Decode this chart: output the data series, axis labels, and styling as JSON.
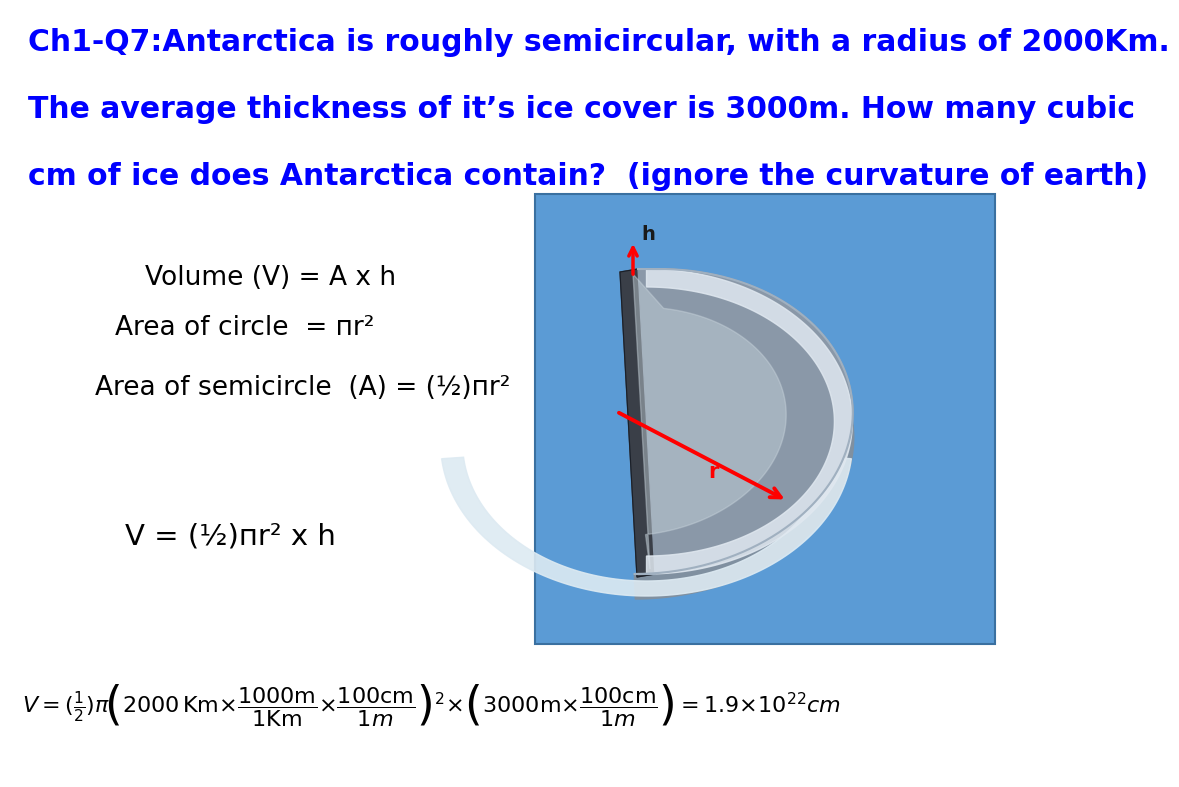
{
  "bg_color": "#FFFFFF",
  "title_color": "#0000FF",
  "title_fontsize": 21.5,
  "title_lines": [
    "Ch1-Q7:Antarctica is roughly semicircular, with a radius of 2000Km.",
    "The average thickness of it’s ice cover is 3000m. How many cubic",
    "cm of ice does Antarctica contain?  (ignore the curvature of earth)"
  ],
  "text_color": "#000000",
  "text_fontsize": 19,
  "box_color": "#5B9BD5",
  "box_edge_color": "#3A70A0",
  "line1": "Volume (V) = A x h",
  "line2": "Area of circle  = пr²",
  "line3": "Area of semicircle  (A) = (½)пr²",
  "line4": "V = (½)пr² x h",
  "red_color": "#FF0000",
  "dark_side_color": "#3A3F48",
  "face_color_top": "#7A8898",
  "face_color_mid": "#8A98A8",
  "face_color_bottom": "#9AAABA",
  "highlight_color": "#C8D4DC",
  "rim_light_color": "#E0E8F0",
  "rim_dark_color": "#5A6878",
  "bottom_edge_color": "#DDEAF2"
}
